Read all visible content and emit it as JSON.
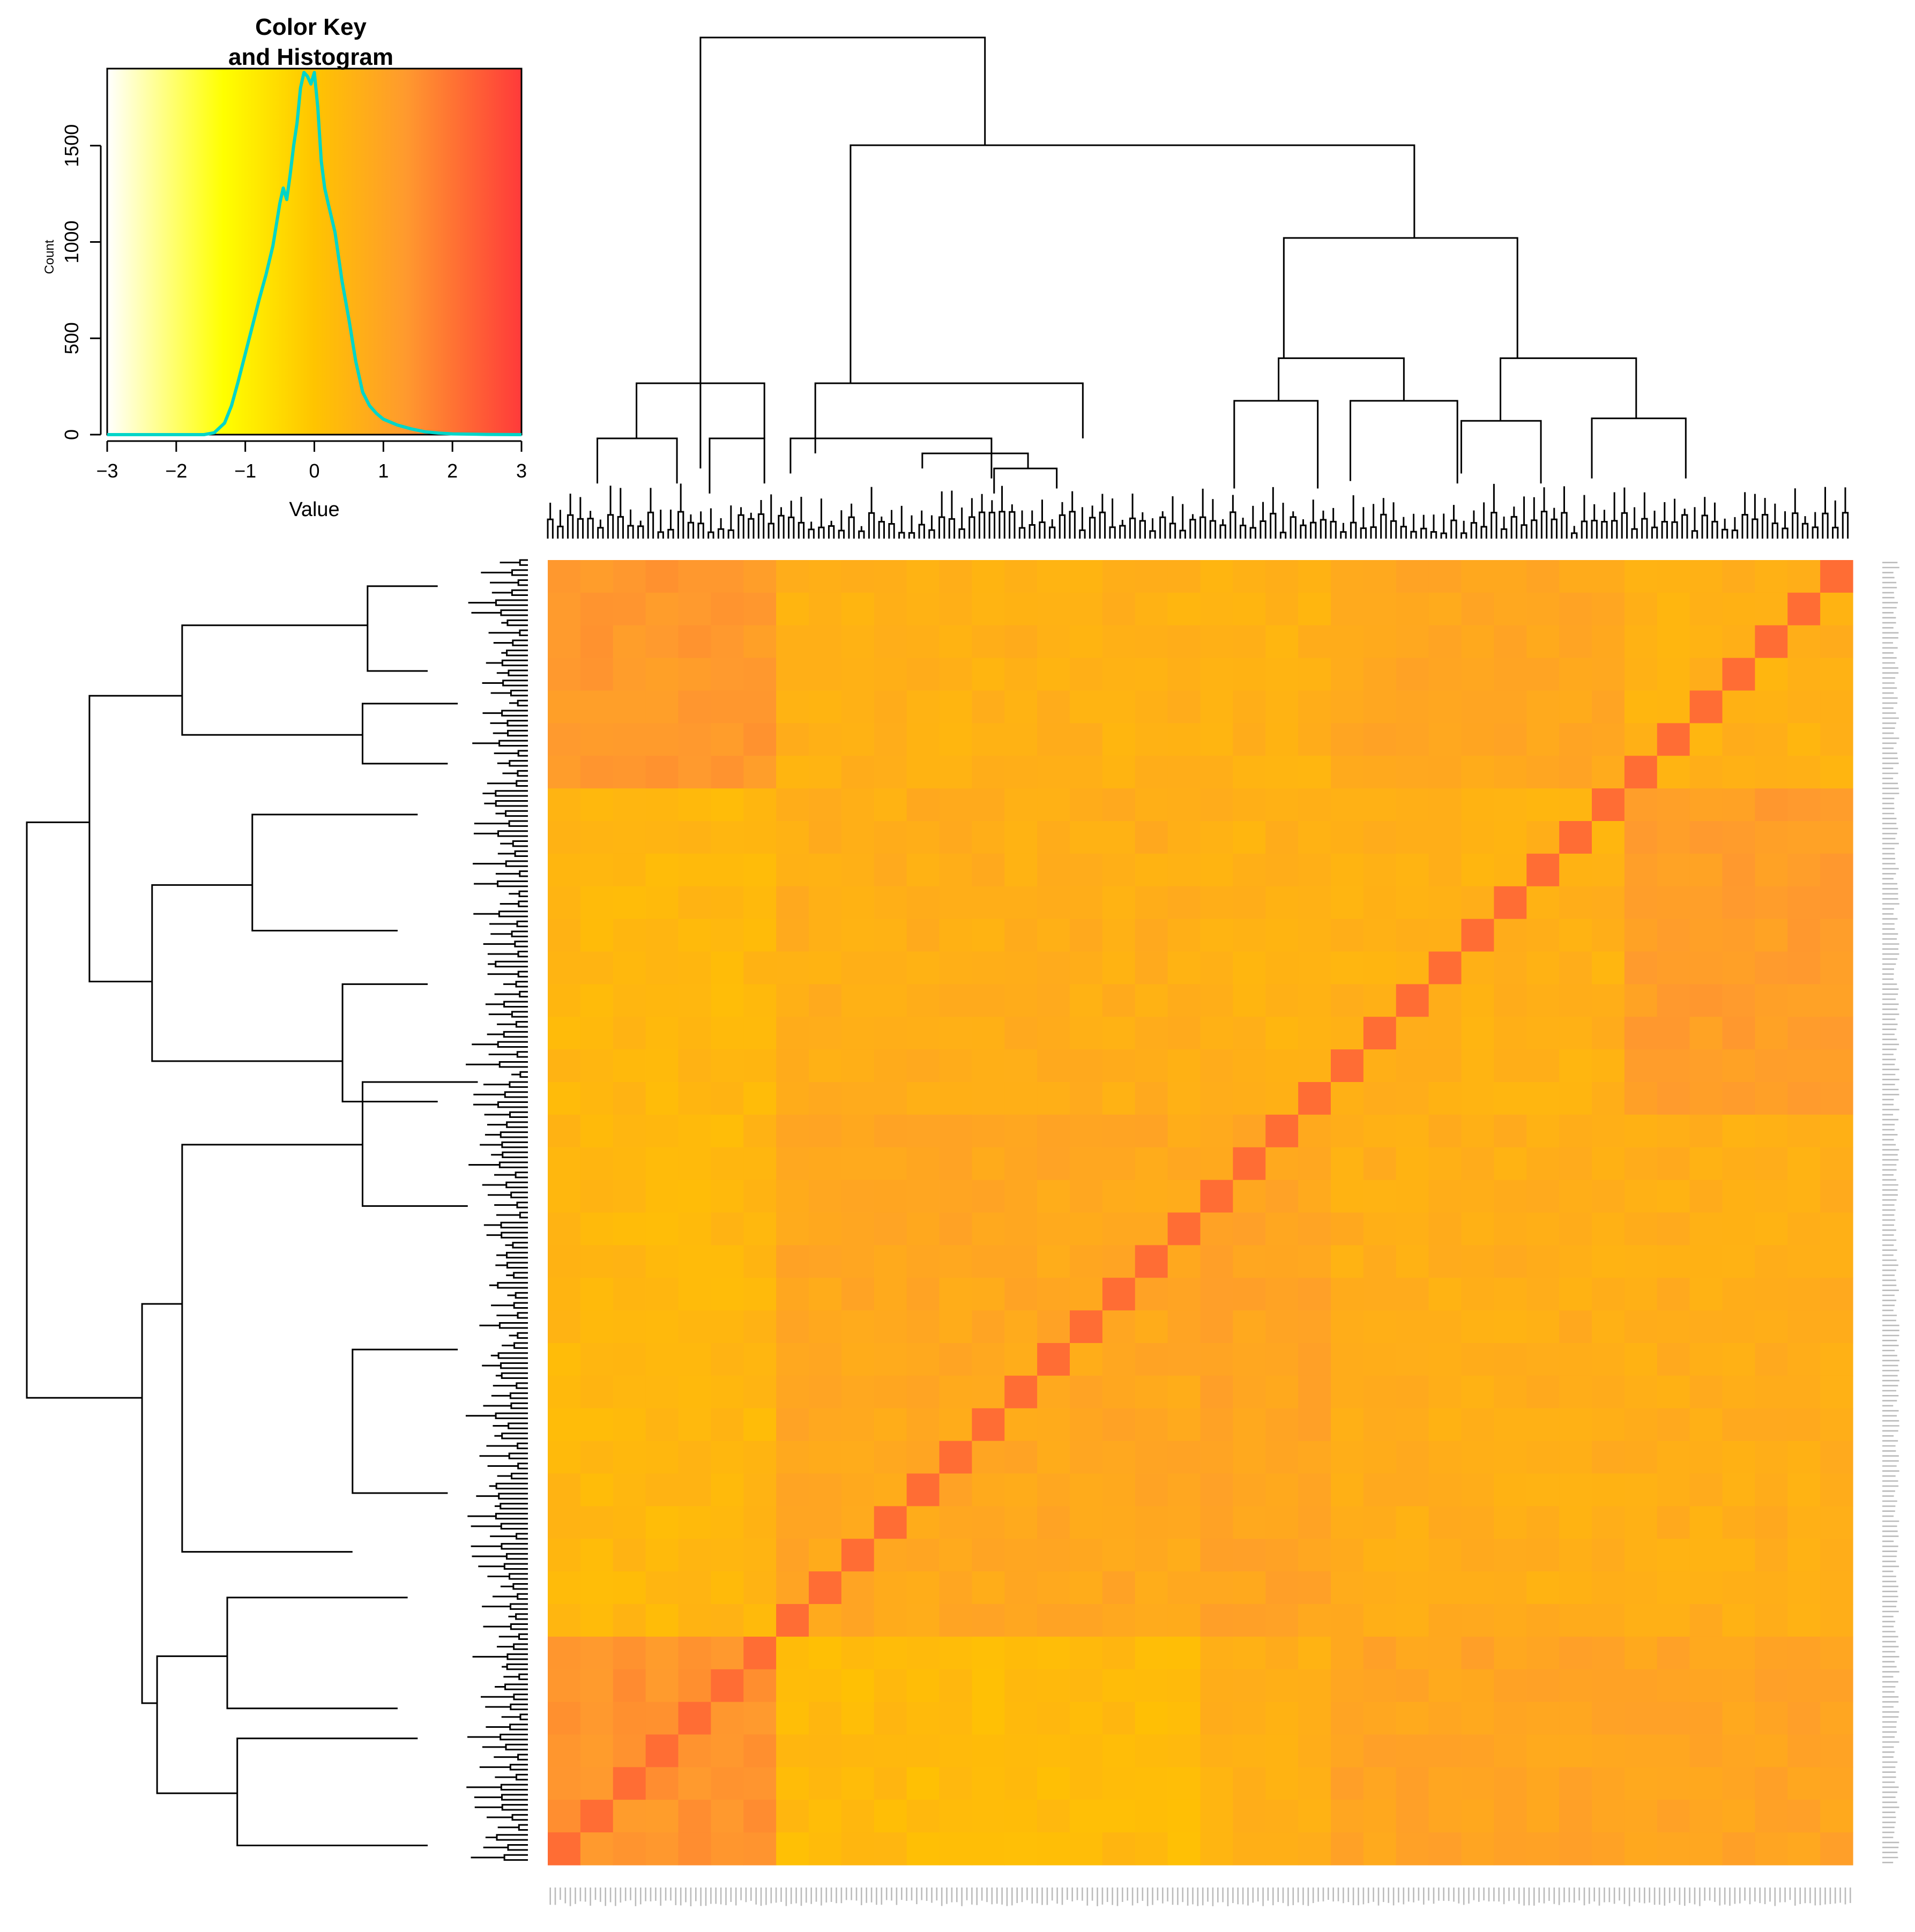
{
  "chart_data": [
    {
      "type": "histogram",
      "panel": "color-key",
      "title": "Color Key\nand Histogram",
      "title_lines": [
        "Color Key",
        "and Histogram"
      ],
      "xlabel": "Value",
      "ylabel": "Count",
      "xlim": [
        -3,
        3
      ],
      "ylim": [
        0,
        1900
      ],
      "x_ticks": [
        -3,
        -2,
        -1,
        0,
        1,
        2,
        3
      ],
      "x_tick_labels": [
        "−3",
        "−2",
        "−1",
        "0",
        "1",
        "2",
        "3"
      ],
      "y_ticks": [
        0,
        500,
        1000,
        1500
      ],
      "y_tick_labels": [
        "0",
        "500",
        "1000",
        "1500"
      ],
      "color_scale": [
        "#ffffff",
        "#ffff00",
        "#ffc400",
        "#ff9a2e",
        "#ff3a3a"
      ],
      "line_color": "#00d5c8",
      "grid": false,
      "x": [
        -3.0,
        -1.6,
        -1.45,
        -1.3,
        -1.2,
        -1.1,
        -1.0,
        -0.9,
        -0.8,
        -0.7,
        -0.6,
        -0.5,
        -0.45,
        -0.4,
        -0.35,
        -0.3,
        -0.25,
        -0.2,
        -0.15,
        -0.1,
        -0.05,
        0.0,
        0.05,
        0.1,
        0.15,
        0.2,
        0.3,
        0.4,
        0.5,
        0.6,
        0.7,
        0.8,
        0.9,
        1.0,
        1.2,
        1.4,
        1.6,
        1.8,
        2.0,
        2.5,
        3.0
      ],
      "y": [
        0,
        0,
        10,
        60,
        150,
        280,
        420,
        560,
        700,
        830,
        980,
        1200,
        1280,
        1220,
        1350,
        1500,
        1620,
        1800,
        1880,
        1860,
        1820,
        1880,
        1700,
        1420,
        1280,
        1200,
        1050,
        800,
        600,
        380,
        220,
        150,
        110,
        80,
        50,
        30,
        15,
        8,
        4,
        1,
        0
      ]
    },
    {
      "type": "dendrogram",
      "panel": "column-dendrogram",
      "orientation": "top",
      "leaf_range": [
        0,
        100
      ],
      "height_max": 100,
      "merges": [
        {
          "left": 18,
          "right": 46,
          "height": 3
        },
        {
          "left": 32,
          "right": 62,
          "height": 28
        },
        {
          "left": 6,
          "right": 27,
          "height": 90
        },
        {
          "left": 4,
          "right": 16,
          "height": 17
        },
        {
          "left": 38,
          "right": 59,
          "height": 21
        },
        {
          "left": 28,
          "right": 50,
          "height": 19
        },
        {
          "left": 13,
          "right": 39,
          "height": 31
        },
        {
          "left": 13.5,
          "right": 54,
          "height": 9
        },
        {
          "left": 66,
          "right": 112,
          "height": 81
        },
        {
          "left": 24,
          "right": 111,
          "height": 65
        },
        {
          "left": 42,
          "right": 52,
          "height": 11
        },
        {
          "left": 48,
          "right": 55,
          "height": 12
        }
      ],
      "leaves_shown": 260
    },
    {
      "type": "dendrogram",
      "panel": "row-dendrogram",
      "orientation": "left",
      "leaf_range": [
        0,
        100
      ],
      "height_max": 100,
      "merges": [
        {
          "left": 9,
          "right": 32,
          "height": 100
        },
        {
          "left": 9,
          "right": 18,
          "height": 80
        },
        {
          "left": 7,
          "right": 33,
          "height": 38
        },
        {
          "left": 29,
          "right": 53,
          "height": 31
        },
        {
          "left": 91,
          "right": 98,
          "height": 39
        },
        {
          "left": 58,
          "right": 83,
          "height": 33
        }
      ],
      "leaves_shown": 260
    },
    {
      "type": "heatmap",
      "panel": "correlation-heatmap",
      "rows": 40,
      "cols": 40,
      "value_range": [
        -3,
        3
      ],
      "clusters_col_breaks": [
        0,
        7.3,
        20,
        24,
        33,
        40
      ],
      "clusters_row_breaks": [
        0,
        7.3,
        16.9,
        32.7,
        40
      ],
      "block_strengths": [
        [
          1.3,
          0.6,
          0.6,
          0.9,
          0.6
        ],
        [
          0.4,
          0.7,
          0.6,
          0.6,
          1.2
        ],
        [
          0.4,
          0.9,
          1.0,
          0.7,
          0.7
        ],
        [
          1.4,
          0.3,
          0.6,
          1.0,
          1.0
        ]
      ],
      "diagonal_value": 2.1
    }
  ]
}
